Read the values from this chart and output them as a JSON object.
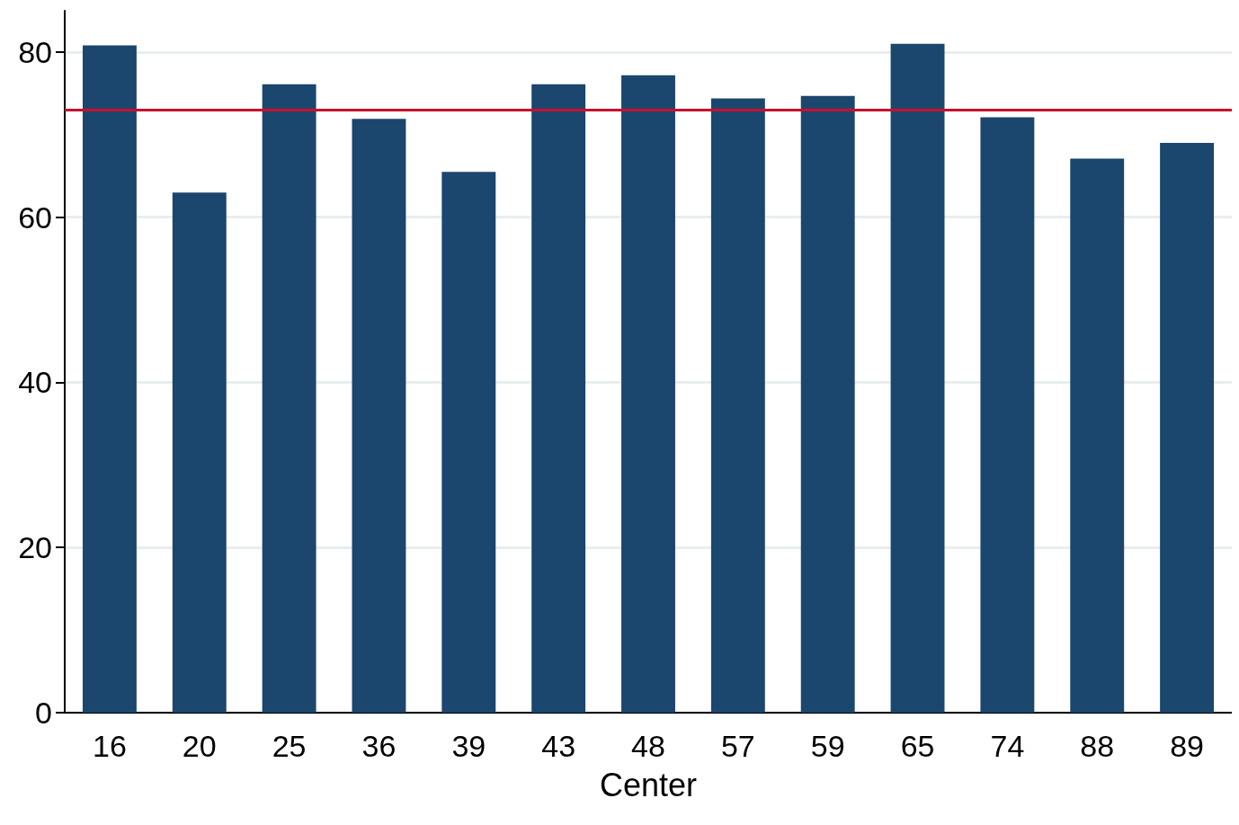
{
  "chart_data": {
    "type": "bar",
    "xlabel": "Center",
    "categories": [
      "16",
      "20",
      "25",
      "36",
      "39",
      "43",
      "48",
      "57",
      "59",
      "65",
      "74",
      "88",
      "89"
    ],
    "values": [
      80.8,
      63.0,
      76.1,
      71.9,
      65.5,
      76.1,
      77.2,
      74.4,
      74.7,
      81.0,
      72.1,
      67.1,
      69.0
    ],
    "color": "#1b466e",
    "ylim": [
      0,
      85
    ],
    "yticks": [
      0,
      20,
      40,
      60,
      80
    ],
    "grid": "y",
    "ref_lines": [
      {
        "axis": "y",
        "value": 73.0,
        "color": "#c8102e",
        "line_style": "solid"
      }
    ]
  }
}
